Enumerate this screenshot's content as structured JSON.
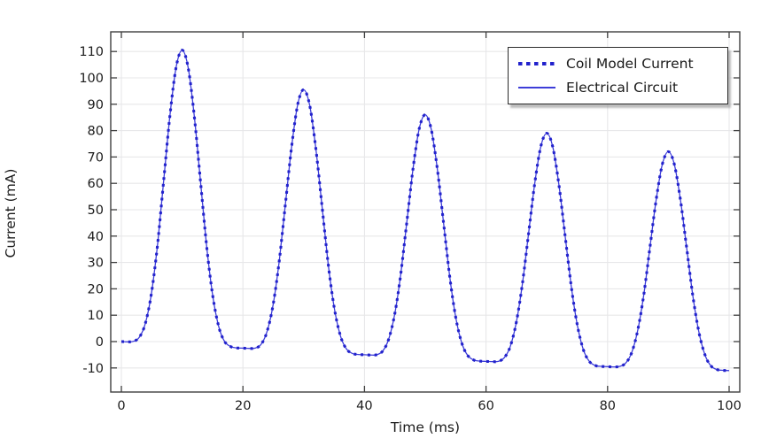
{
  "figure": {
    "background": "#ffffff",
    "axis_color": "#3f3f3f",
    "grid_color": "#e7e7e9",
    "tick_label_color": "#1c1c1c"
  },
  "chart_data": {
    "type": "line",
    "title": "",
    "xlabel": "Time (ms)",
    "ylabel": "Current (mA)",
    "xlim": [
      -1.75,
      101.75
    ],
    "ylim": [
      -19,
      117.4
    ],
    "x_ticks": [
      0,
      20,
      40,
      60,
      80,
      100
    ],
    "y_ticks": [
      110,
      100,
      90,
      80,
      70,
      60,
      50,
      40,
      30,
      20,
      10,
      0,
      -10
    ],
    "grid": true,
    "legend_position": "top-right",
    "x": [
      0,
      1,
      2,
      3,
      4,
      5,
      6,
      7,
      8,
      9,
      10,
      11,
      12,
      13,
      14,
      15,
      16,
      17,
      18,
      19,
      20,
      21,
      22,
      23,
      24,
      25,
      26,
      27,
      28,
      29,
      30,
      31,
      32,
      33,
      34,
      35,
      36,
      37,
      38,
      39,
      40,
      41,
      42,
      43,
      44,
      45,
      46,
      47,
      48,
      49,
      50,
      51,
      52,
      53,
      54,
      55,
      56,
      57,
      58,
      59,
      60,
      61,
      62,
      63,
      64,
      65,
      66,
      67,
      68,
      69,
      70,
      71,
      72,
      73,
      74,
      75,
      76,
      77,
      78,
      79,
      80,
      81,
      82,
      83,
      84,
      85,
      86,
      87,
      88,
      89,
      90,
      91,
      92,
      93,
      94,
      95,
      96,
      97,
      98,
      99,
      100
    ],
    "series": [
      {
        "name": "Coil Model Current",
        "style": "dotted",
        "color": "#2222cc",
        "values": [
          0,
          -0.1,
          0.1,
          1.8,
          7.3,
          19.1,
          37.9,
          61.9,
          86.0,
          103.9,
          110.5,
          103.7,
          85.5,
          61.1,
          36.9,
          17.9,
          5.8,
          0.0,
          -1.9,
          -2.4,
          -2.5,
          -2.6,
          -2.5,
          -1.0,
          4.0,
          14.4,
          31.1,
          52.3,
          73.7,
          89.7,
          95.5,
          89.4,
          73.2,
          51.6,
          30.1,
          13.2,
          2.5,
          -2.7,
          -4.5,
          -4.9,
          -5.0,
          -5.1,
          -5.0,
          -3.6,
          1.0,
          10.7,
          26.2,
          45.9,
          65.8,
          80.6,
          86.0,
          80.3,
          65.3,
          45.2,
          25.2,
          9.4,
          -0.5,
          -5.3,
          -7.0,
          -7.4,
          -7.5,
          -7.6,
          -7.5,
          -6.1,
          -1.8,
          7.5,
          22.2,
          40.9,
          59.8,
          73.8,
          79.0,
          73.6,
          59.4,
          40.3,
          21.4,
          6.5,
          -3.0,
          -7.5,
          -9.1,
          -9.4,
          -9.5,
          -9.6,
          -9.4,
          -8.1,
          -4.0,
          4.7,
          18.5,
          36.2,
          53.9,
          67.1,
          72.0,
          67.0,
          53.6,
          35.7,
          17.9,
          3.9,
          -4.9,
          -9.2,
          -10.6,
          -10.9,
          -11.0
        ]
      },
      {
        "name": "Electrical Circuit",
        "style": "solid",
        "color": "#3d3dd8",
        "values": [
          0,
          -0.1,
          0.1,
          1.8,
          7.3,
          19.1,
          37.9,
          61.9,
          86.0,
          103.9,
          110.5,
          103.7,
          85.5,
          61.1,
          36.9,
          17.9,
          5.8,
          0.0,
          -1.9,
          -2.4,
          -2.5,
          -2.6,
          -2.5,
          -1.0,
          4.0,
          14.4,
          31.1,
          52.3,
          73.7,
          89.7,
          95.5,
          89.4,
          73.2,
          51.6,
          30.1,
          13.2,
          2.5,
          -2.7,
          -4.5,
          -4.9,
          -5.0,
          -5.1,
          -5.0,
          -3.6,
          1.0,
          10.7,
          26.2,
          45.9,
          65.8,
          80.6,
          86.0,
          80.3,
          65.3,
          45.2,
          25.2,
          9.4,
          -0.5,
          -5.3,
          -7.0,
          -7.4,
          -7.5,
          -7.6,
          -7.5,
          -6.1,
          -1.8,
          7.5,
          22.2,
          40.9,
          59.8,
          73.8,
          79.0,
          73.6,
          59.4,
          40.3,
          21.4,
          6.5,
          -3.0,
          -7.5,
          -9.1,
          -9.4,
          -9.5,
          -9.6,
          -9.4,
          -8.1,
          -4.0,
          4.7,
          18.5,
          36.2,
          53.9,
          67.1,
          72.0,
          67.0,
          53.6,
          35.7,
          17.9,
          3.9,
          -4.9,
          -9.2,
          -10.6,
          -10.9,
          -11.0
        ]
      }
    ]
  }
}
